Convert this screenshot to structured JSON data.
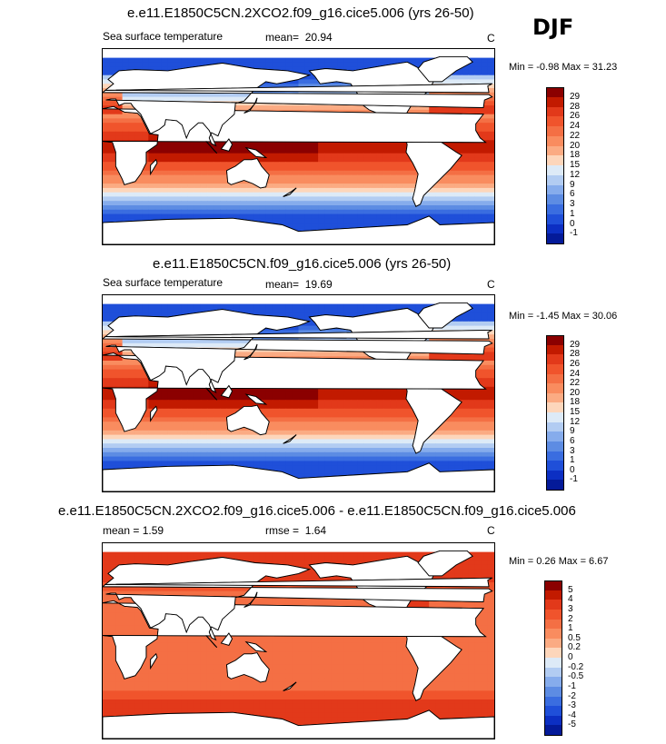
{
  "season": "DJF",
  "panels": [
    {
      "title": "e.e11.E1850C5CN.2XCO2.f09_g16.cice5.006 (yrs 26-50)",
      "left_label": "Sea surface temperature",
      "stat_label": "mean=",
      "stat_value": "20.94",
      "units": "C",
      "minmax": "Min =  -0.98 Max =  31.23",
      "colorbar_labels": [
        "29",
        "28",
        "26",
        "24",
        "22",
        "20",
        "18",
        "15",
        "12",
        "9",
        "6",
        "3",
        "1",
        "0",
        "-1"
      ],
      "colorbar_colors": [
        "#8b0000",
        "#c21a00",
        "#e2391a",
        "#f0542c",
        "#f46f44",
        "#f98c5f",
        "#fbab83",
        "#fdd6bb",
        "#ddeaf7",
        "#b2ccf2",
        "#86acec",
        "#5d8ce3",
        "#3a6de0",
        "#1f4fd9",
        "#0c2fc3",
        "#041a99"
      ],
      "palette": "sst"
    },
    {
      "title": "e.e11.E1850C5CN.f09_g16.cice5.006 (yrs 26-50)",
      "left_label": "Sea surface temperature",
      "stat_label": "mean=",
      "stat_value": "19.69",
      "units": "C",
      "minmax": "Min =  -1.45 Max =  30.06",
      "colorbar_labels": [
        "29",
        "28",
        "26",
        "24",
        "22",
        "20",
        "18",
        "15",
        "12",
        "9",
        "6",
        "3",
        "1",
        "0",
        "-1"
      ],
      "colorbar_colors": [
        "#8b0000",
        "#c21a00",
        "#e2391a",
        "#f0542c",
        "#f46f44",
        "#f98c5f",
        "#fbab83",
        "#fdd6bb",
        "#ddeaf7",
        "#b2ccf2",
        "#86acec",
        "#5d8ce3",
        "#3a6de0",
        "#1f4fd9",
        "#0c2fc3",
        "#041a99"
      ],
      "palette": "sst"
    },
    {
      "title": "e.e11.E1850C5CN.2XCO2.f09_g16.cice5.006 - e.e11.E1850C5CN.f09_g16.cice5.006",
      "left_label": "mean =   1.59",
      "stat_label": "rmse =",
      "stat_value": "1.64",
      "units": "C",
      "minmax": "Min =  0.26 Max =  6.67",
      "colorbar_labels": [
        "5",
        "4",
        "3",
        "2",
        "1",
        "0.5",
        "0.2",
        "0",
        "-0.2",
        "-0.5",
        "-1",
        "-2",
        "-3",
        "-4",
        "-5"
      ],
      "colorbar_colors": [
        "#8b0000",
        "#c21a00",
        "#e2391a",
        "#f0542c",
        "#f46f44",
        "#f98c5f",
        "#fbab83",
        "#fdd6bb",
        "#ddeaf7",
        "#b2ccf2",
        "#86acec",
        "#5d8ce3",
        "#3a6de0",
        "#1f4fd9",
        "#0c2fc3",
        "#041a99"
      ],
      "palette": "diff"
    }
  ]
}
